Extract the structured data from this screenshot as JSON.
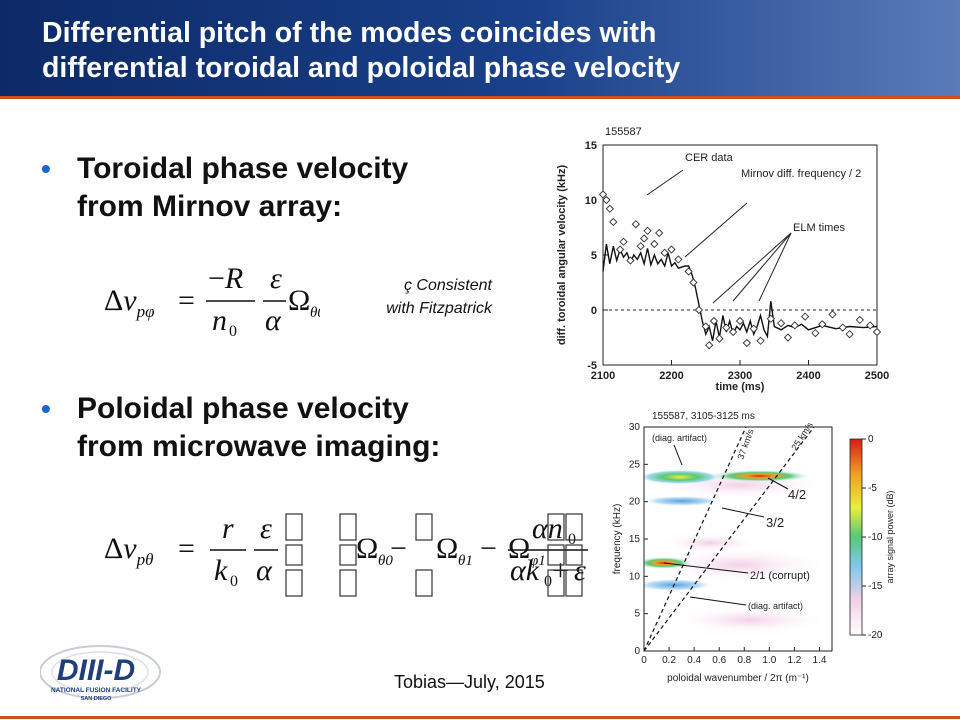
{
  "slide": {
    "title_line1": "Differential pitch of the modes coincides with",
    "title_line2": "differential toroidal and poloidal phase velocity",
    "bullet1_line1": "Toroidal phase velocity",
    "bullet1_line2": "from Mirnov array:",
    "bullet2_line1": "Poloidal phase velocity",
    "bullet2_line2": "from microwave imaging:",
    "note_line1": "ç Consistent",
    "note_line2": "with Fitzpatrick",
    "footer": "Tobias—July, 2015",
    "bullet_glyph": "•"
  },
  "logo": {
    "name": "DIII-D",
    "sub1": "NATIONAL FUSION FACILITY",
    "sub2": "SAN DIEGO"
  },
  "colors": {
    "header": "#1a3f86",
    "accent": "#c9521f",
    "bullet": "#1c64c8"
  },
  "chart_data": [
    {
      "type": "line",
      "title": "155587",
      "xlabel": "time (ms)",
      "ylabel": "diff. toroidal angular velocity (kHz)",
      "xlim": [
        2100,
        2500
      ],
      "ylim": [
        -5,
        15
      ],
      "x_ticks": [
        "2100",
        "2200",
        "2300",
        "2400",
        "2500"
      ],
      "y_ticks": [
        "-5",
        "0",
        "5",
        "10",
        "15"
      ],
      "annotations": [
        "CER data",
        "Mirnov diff. frequency / 2",
        "ELM times"
      ],
      "series": [
        {
          "name": "Mirnov diff. frequency / 2",
          "x": [
            2100,
            2105,
            2110,
            2115,
            2120,
            2125,
            2130,
            2135,
            2140,
            2145,
            2150,
            2155,
            2160,
            2165,
            2170,
            2175,
            2180,
            2185,
            2190,
            2195,
            2200,
            2205,
            2210,
            2215,
            2220,
            2225,
            2230,
            2235,
            2240,
            2245,
            2250,
            2255,
            2260,
            2265,
            2270,
            2275,
            2280,
            2285,
            2290,
            2295,
            2300,
            2305,
            2310,
            2315,
            2320,
            2325,
            2330,
            2335,
            2340,
            2345,
            2350,
            2360,
            2370,
            2380,
            2390,
            2400,
            2420,
            2440,
            2460,
            2480,
            2500
          ],
          "y": [
            3.5,
            6.0,
            4.2,
            5.8,
            4.5,
            5.5,
            4.8,
            5.2,
            4.3,
            5.0,
            4.6,
            5.2,
            4.2,
            5.6,
            4.1,
            5.0,
            4.2,
            4.6,
            4.0,
            5.2,
            4.0,
            4.3,
            3.8,
            3.9,
            4.0,
            4.0,
            3.2,
            2.0,
            0.5,
            -1.0,
            -2.2,
            -1.5,
            -2.8,
            -1.0,
            -2.5,
            -0.5,
            -2.0,
            -1.0,
            -2.2,
            -1.5,
            -1.8,
            -1.2,
            -2.0,
            -1.0,
            -2.2,
            -1.5,
            -0.5,
            -1.8,
            -2.4,
            0.8,
            -1.5,
            -1.8,
            -1.4,
            -1.6,
            -1.3,
            -1.8,
            -1.4,
            -1.7,
            -1.5,
            -1.6,
            -1.5
          ]
        },
        {
          "name": "CER data",
          "x": [
            2100,
            2105,
            2110,
            2115,
            2125,
            2130,
            2140,
            2148,
            2155,
            2160,
            2165,
            2175,
            2182,
            2190,
            2200,
            2210,
            2225,
            2232,
            2240,
            2250,
            2255,
            2262,
            2270,
            2280,
            2290,
            2300,
            2310,
            2320,
            2330,
            2345,
            2360,
            2370,
            2380,
            2395,
            2410,
            2420,
            2435,
            2450,
            2460,
            2475,
            2490,
            2500
          ],
          "y": [
            10.5,
            10.0,
            9.2,
            8.0,
            5.5,
            6.2,
            4.5,
            7.8,
            5.8,
            6.5,
            7.2,
            6.0,
            7.0,
            5.2,
            5.5,
            4.6,
            3.5,
            2.5,
            0.0,
            -1.5,
            -3.2,
            -1.0,
            -2.6,
            -1.6,
            -2.0,
            -1.0,
            -3.0,
            -1.7,
            -2.8,
            -0.8,
            -1.2,
            -2.5,
            -1.4,
            -0.6,
            -2.1,
            -1.3,
            -0.4,
            -1.6,
            -2.2,
            -0.9,
            -1.4,
            -2.0
          ]
        }
      ]
    },
    {
      "type": "heatmap",
      "title": "155587, 3105-3125 ms",
      "xlabel": "poloidal wavenumber / 2π (m⁻¹)",
      "ylabel": "frequency (kHz)",
      "xlim": [
        0,
        1.5
      ],
      "ylim": [
        0,
        30
      ],
      "x_ticks": [
        "0",
        "0.2",
        "0.4",
        "0.6",
        "0.8",
        "1.0",
        "1.2",
        "1.4"
      ],
      "y_ticks": [
        "0",
        "5",
        "10",
        "15",
        "20",
        "25",
        "30"
      ],
      "colorbar_label": "array signal power (dB)",
      "colorbar_ticks": [
        "0",
        "-5",
        "-10",
        "-15",
        "-20"
      ],
      "lines": [
        "37 km/s",
        "25 km/s"
      ],
      "annotations": [
        "(diag. artifact)",
        "4/2",
        "3/2",
        "2/1 (corrupt)",
        "(diag. artifact)"
      ]
    }
  ]
}
